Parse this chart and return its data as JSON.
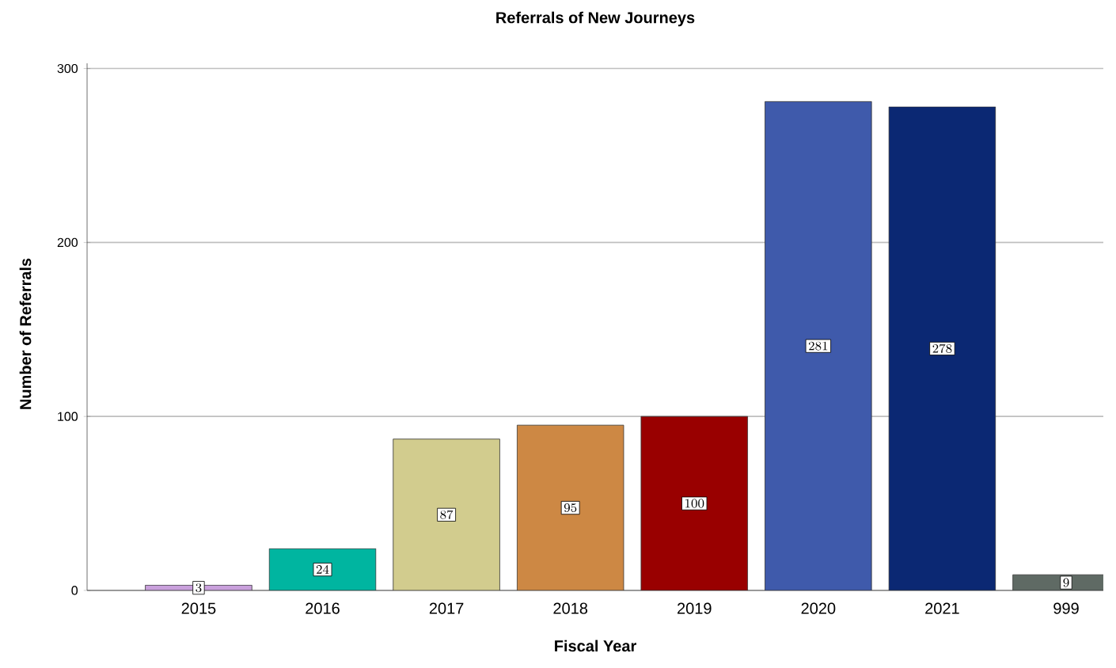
{
  "chart_data": {
    "type": "bar",
    "title": "Referrals of New Journeys",
    "xlabel": "Fiscal Year",
    "ylabel": "Number of Referrals",
    "categories": [
      "2015",
      "2016",
      "2017",
      "2018",
      "2019",
      "2020",
      "2021",
      "999"
    ],
    "values": [
      3,
      24,
      87,
      95,
      100,
      281,
      278,
      9
    ],
    "colors": [
      "#c9a0dc",
      "#00b5a0",
      "#d2cc8e",
      "#cd8844",
      "#990000",
      "#3f5aab",
      "#0b2873",
      "#5f6a64"
    ],
    "ylim": [
      0,
      303
    ],
    "yticks": [
      0,
      100,
      200,
      300
    ],
    "grid": "y",
    "data_labels": true
  }
}
